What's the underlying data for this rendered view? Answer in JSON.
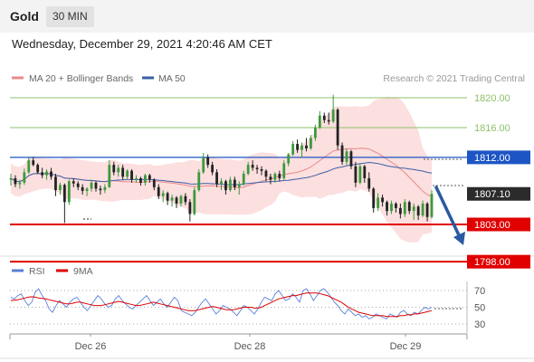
{
  "header": {
    "instrument": "Gold",
    "timeframe": "30 MIN",
    "datetime": "Wednesday, December 29, 2021 4:20:46 AM CET"
  },
  "legend": {
    "ma20_label": "MA 20 + Bollinger Bands",
    "ma50_label": "MA 50",
    "copyright": "Research © 2021 Trading Central",
    "rsi_label": "RSI",
    "rsi_ma_label": "9MA"
  },
  "colors": {
    "bull": "#3c9a3c",
    "bear": "#222222",
    "bollinger_fill": "#fbd9d9",
    "ma20": "#e88a8a",
    "ma50": "#3a5fa8",
    "resistance": "#8fc06a",
    "pivot": "#1d55c4",
    "support": "#e00000",
    "arrow": "#2a5aa0",
    "rsi": "#5a7fd8",
    "rsi_ma": "#dd0000"
  },
  "chart_data": [
    {
      "type": "candlestick",
      "title": "",
      "ylim": [
        1795.0,
        1823.0
      ],
      "x_ticks": [
        "Dec 26",
        "Dec 28",
        "Dec 29"
      ],
      "levels": [
        {
          "label": "1820.00",
          "value": 1820.0,
          "kind": "resistance"
        },
        {
          "label": "1816.00",
          "value": 1816.0,
          "kind": "resistance"
        },
        {
          "label": "1812.00",
          "value": 1812.0,
          "kind": "pivot"
        },
        {
          "label": "1807.10",
          "value": 1807.1,
          "kind": "last"
        },
        {
          "label": "1803.00",
          "value": 1803.0,
          "kind": "support"
        },
        {
          "label": "1798.00",
          "value": 1798.0,
          "kind": "support"
        }
      ],
      "arrow": {
        "from": 1807.1,
        "to": 1798.0,
        "direction": "down"
      },
      "series": [
        {
          "name": "MA 20 + Bollinger Bands",
          "style": "ma_band"
        },
        {
          "name": "MA 50",
          "style": "ma"
        }
      ],
      "candles": [
        [
          1809.0,
          1809.8,
          1808.2,
          1809.2
        ],
        [
          1809.2,
          1809.6,
          1808.0,
          1808.4
        ],
        [
          1808.4,
          1809.0,
          1807.8,
          1808.6
        ],
        [
          1808.6,
          1810.5,
          1808.3,
          1810.0
        ],
        [
          1810.0,
          1812.0,
          1809.8,
          1811.6
        ],
        [
          1811.6,
          1812.0,
          1810.8,
          1811.0
        ],
        [
          1811.0,
          1811.2,
          1809.8,
          1810.0
        ],
        [
          1810.0,
          1810.6,
          1809.2,
          1809.6
        ],
        [
          1809.6,
          1810.4,
          1809.0,
          1810.1
        ],
        [
          1810.1,
          1810.6,
          1809.0,
          1809.4
        ],
        [
          1809.4,
          1809.8,
          1806.8,
          1807.6
        ],
        [
          1807.6,
          1808.6,
          1807.0,
          1808.3
        ],
        [
          1808.3,
          1808.5,
          1803.2,
          1806.0
        ],
        [
          1806.0,
          1809.0,
          1805.6,
          1808.8
        ],
        [
          1808.8,
          1809.2,
          1808.0,
          1808.5
        ],
        [
          1808.5,
          1808.8,
          1807.6,
          1808.0
        ],
        [
          1808.0,
          1808.4,
          1807.0,
          1807.5
        ],
        [
          1807.5,
          1808.0,
          1806.8,
          1807.8
        ],
        [
          1807.8,
          1809.0,
          1807.4,
          1808.6
        ],
        [
          1808.6,
          1808.8,
          1807.4,
          1807.8
        ],
        [
          1807.8,
          1808.2,
          1807.0,
          1807.6
        ],
        [
          1807.6,
          1808.4,
          1807.2,
          1808.0
        ],
        [
          1808.0,
          1811.6,
          1807.9,
          1811.0
        ],
        [
          1811.0,
          1811.4,
          1809.6,
          1810.0
        ],
        [
          1810.0,
          1811.0,
          1809.4,
          1810.6
        ],
        [
          1810.6,
          1811.0,
          1809.0,
          1809.4
        ],
        [
          1809.4,
          1810.4,
          1809.0,
          1810.2
        ],
        [
          1810.2,
          1810.4,
          1808.6,
          1809.0
        ],
        [
          1809.0,
          1809.6,
          1808.6,
          1809.2
        ],
        [
          1809.2,
          1809.4,
          1808.2,
          1808.6
        ],
        [
          1808.6,
          1809.8,
          1808.2,
          1809.6
        ],
        [
          1809.6,
          1809.8,
          1808.6,
          1809.0
        ],
        [
          1809.0,
          1809.2,
          1807.6,
          1808.0
        ],
        [
          1808.0,
          1808.4,
          1806.4,
          1806.8
        ],
        [
          1806.8,
          1807.6,
          1806.0,
          1807.2
        ],
        [
          1807.2,
          1807.4,
          1805.6,
          1806.2
        ],
        [
          1806.2,
          1807.0,
          1805.4,
          1806.6
        ],
        [
          1806.6,
          1806.8,
          1805.2,
          1805.8
        ],
        [
          1805.8,
          1807.0,
          1805.4,
          1806.8
        ],
        [
          1806.8,
          1807.2,
          1805.6,
          1806.0
        ],
        [
          1806.0,
          1806.4,
          1803.4,
          1804.4
        ],
        [
          1804.4,
          1808.0,
          1804.2,
          1807.6
        ],
        [
          1807.6,
          1810.4,
          1807.4,
          1810.0
        ],
        [
          1810.0,
          1812.6,
          1809.8,
          1812.0
        ],
        [
          1812.0,
          1812.4,
          1810.6,
          1811.0
        ],
        [
          1811.0,
          1811.4,
          1809.6,
          1810.0
        ],
        [
          1810.0,
          1810.4,
          1808.0,
          1808.4
        ],
        [
          1808.4,
          1809.2,
          1807.6,
          1808.8
        ],
        [
          1808.8,
          1809.0,
          1807.0,
          1807.6
        ],
        [
          1807.6,
          1809.4,
          1807.4,
          1809.0
        ],
        [
          1809.0,
          1809.4,
          1807.6,
          1808.0
        ],
        [
          1808.0,
          1808.8,
          1807.0,
          1808.4
        ],
        [
          1808.4,
          1810.2,
          1808.2,
          1809.8
        ],
        [
          1809.8,
          1811.4,
          1809.6,
          1811.0
        ],
        [
          1811.0,
          1811.6,
          1810.2,
          1810.6
        ],
        [
          1810.6,
          1811.0,
          1809.8,
          1810.4
        ],
        [
          1810.4,
          1810.8,
          1809.6,
          1810.2
        ],
        [
          1810.2,
          1810.4,
          1808.8,
          1809.4
        ],
        [
          1809.4,
          1809.8,
          1808.4,
          1809.0
        ],
        [
          1809.0,
          1810.0,
          1808.6,
          1809.8
        ],
        [
          1809.8,
          1810.2,
          1808.8,
          1809.2
        ],
        [
          1809.2,
          1811.6,
          1809.0,
          1811.2
        ],
        [
          1811.2,
          1812.6,
          1810.8,
          1812.4
        ],
        [
          1812.4,
          1814.2,
          1812.2,
          1813.8
        ],
        [
          1813.8,
          1814.4,
          1812.6,
          1813.0
        ],
        [
          1813.0,
          1814.0,
          1812.0,
          1813.6
        ],
        [
          1813.6,
          1814.6,
          1812.8,
          1813.2
        ],
        [
          1813.2,
          1815.0,
          1813.0,
          1814.6
        ],
        [
          1814.6,
          1816.4,
          1814.2,
          1816.0
        ],
        [
          1816.0,
          1818.2,
          1815.8,
          1817.6
        ],
        [
          1817.6,
          1818.0,
          1816.6,
          1817.0
        ],
        [
          1817.0,
          1818.0,
          1816.4,
          1816.8
        ],
        [
          1816.8,
          1820.4,
          1816.6,
          1818.4
        ],
        [
          1818.4,
          1818.6,
          1813.0,
          1813.6
        ],
        [
          1813.6,
          1814.0,
          1811.0,
          1811.4
        ],
        [
          1811.4,
          1813.2,
          1811.0,
          1812.8
        ],
        [
          1812.8,
          1813.0,
          1810.4,
          1810.8
        ],
        [
          1810.8,
          1811.4,
          1808.0,
          1808.6
        ],
        [
          1808.6,
          1811.2,
          1808.4,
          1810.8
        ],
        [
          1810.8,
          1811.0,
          1808.6,
          1809.2
        ],
        [
          1809.2,
          1810.0,
          1807.4,
          1807.8
        ],
        [
          1807.8,
          1808.0,
          1804.6,
          1805.2
        ],
        [
          1805.2,
          1807.2,
          1804.8,
          1806.6
        ],
        [
          1806.6,
          1807.0,
          1805.4,
          1806.0
        ],
        [
          1806.0,
          1806.2,
          1804.2,
          1804.8
        ],
        [
          1804.8,
          1806.2,
          1804.4,
          1805.8
        ],
        [
          1805.8,
          1806.0,
          1804.6,
          1805.2
        ],
        [
          1805.2,
          1805.8,
          1803.8,
          1804.4
        ],
        [
          1804.4,
          1806.4,
          1804.0,
          1806.0
        ],
        [
          1806.0,
          1806.2,
          1804.4,
          1804.8
        ],
        [
          1804.8,
          1805.8,
          1803.6,
          1805.4
        ],
        [
          1805.4,
          1805.6,
          1803.6,
          1804.2
        ],
        [
          1804.2,
          1806.2,
          1804.0,
          1805.8
        ],
        [
          1805.8,
          1806.0,
          1803.4,
          1804.0
        ],
        [
          1804.0,
          1807.6,
          1803.8,
          1807.1
        ]
      ]
    },
    {
      "type": "line",
      "title": "",
      "ylim": [
        20,
        80
      ],
      "y_ticks": [
        "70",
        "50",
        "30"
      ],
      "series": [
        {
          "name": "RSI",
          "values": [
            62,
            60,
            64,
            66,
            58,
            52,
            56,
            68,
            72,
            64,
            58,
            48,
            44,
            52,
            58,
            54,
            50,
            56,
            60,
            62,
            56,
            50,
            46,
            52,
            58,
            64,
            60,
            54,
            50,
            52,
            60,
            64,
            58,
            54,
            50,
            48,
            52,
            56,
            60,
            64,
            58,
            52,
            56,
            60,
            54,
            50,
            56,
            62,
            58,
            46,
            44,
            42,
            40,
            44,
            50,
            56,
            60,
            54,
            48,
            42,
            46,
            52,
            50,
            48,
            44,
            40,
            46,
            52,
            50,
            46,
            42,
            48,
            56,
            62,
            60,
            58,
            66,
            70,
            64,
            58,
            60,
            66,
            62,
            56,
            70,
            72,
            66,
            58,
            64,
            70,
            72,
            68,
            62,
            56,
            52,
            46,
            42,
            48,
            44,
            40,
            42,
            38,
            40,
            36,
            38,
            42,
            40,
            38,
            36,
            42,
            40,
            38,
            44,
            46,
            42,
            40,
            44,
            42,
            46,
            50,
            48,
            50
          ]
        },
        {
          "name": "9MA",
          "values": [
            58,
            58.5,
            59,
            60,
            61,
            62,
            62.5,
            62,
            61,
            60.5,
            60,
            59,
            58,
            57,
            56,
            55,
            54,
            54,
            55,
            56,
            56,
            55,
            54,
            53,
            52,
            52,
            52,
            53,
            54,
            55,
            56,
            57,
            56,
            55,
            54,
            53,
            52,
            52,
            53,
            54,
            55,
            56,
            55,
            54,
            53,
            52,
            51,
            50,
            49,
            48,
            47,
            46,
            46,
            46,
            47,
            48,
            49,
            50,
            51,
            50,
            49,
            48,
            47,
            47,
            47,
            48,
            49,
            50,
            50,
            50,
            49,
            49,
            50,
            52,
            54,
            56,
            58,
            60,
            61,
            62,
            63,
            64,
            64,
            65,
            66,
            67,
            67,
            67,
            67,
            66,
            65,
            64,
            62,
            60,
            58,
            56,
            53,
            50,
            48,
            46,
            44,
            43,
            42,
            41,
            40,
            40,
            40,
            40,
            39,
            39,
            39,
            39,
            40,
            40,
            41,
            41,
            42,
            42,
            43,
            44,
            45,
            46
          ]
        }
      ]
    }
  ]
}
